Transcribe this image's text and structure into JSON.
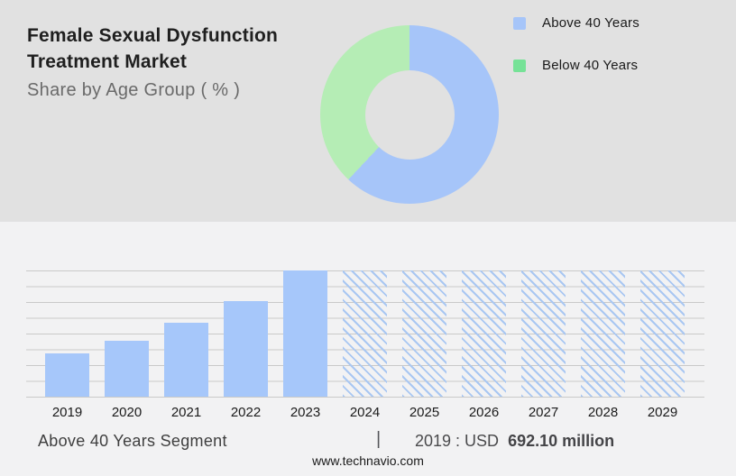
{
  "colors": {
    "top_background": "#e1e1e1",
    "bottom_background": "#f2f2f3",
    "donut_blue": "#a6c5f9",
    "donut_green": "#b5edb5",
    "legend_blue": "#a6c5f9",
    "legend_green": "#76e297",
    "bar_blue": "#a6c7fa",
    "hatch_blue": "#a9c7f2",
    "gridline": "#c9c9c9"
  },
  "header": {
    "title_line1": "Female Sexual Dysfunction",
    "title_line2": "Treatment Market",
    "subtitle": "Share by Age Group ( % )"
  },
  "legend": {
    "items": [
      {
        "label": "Above 40 Years",
        "color": "#a6c5f9"
      },
      {
        "label": "Below 40 Years",
        "color": "#76e297"
      }
    ]
  },
  "chart_data": [
    {
      "type": "pie",
      "subtype": "donut",
      "title": "Female Sexual Dysfunction Treatment Market — Share by Age Group ( % )",
      "labels": [
        "Above 40 Years",
        "Below 40 Years"
      ],
      "values_percent": [
        62,
        38
      ],
      "colors": [
        "#a6c5f9",
        "#b5edb5"
      ],
      "start_angle_deg": 0,
      "direction": "clockwise",
      "legend_position": "top-right",
      "hole_ratio": 0.5
    },
    {
      "type": "bar",
      "categories": [
        "2019",
        "2020",
        "2021",
        "2022",
        "2023",
        "2024",
        "2025",
        "2026",
        "2027",
        "2028",
        "2029"
      ],
      "values_percent_of_max": [
        34.3,
        44.3,
        58.6,
        75.7,
        100,
        100,
        100,
        100,
        100,
        100,
        100
      ],
      "forecast_hatched": [
        false,
        false,
        false,
        false,
        false,
        true,
        true,
        true,
        true,
        true,
        true
      ],
      "known_values": [
        {
          "category": "2019",
          "value": "USD 692.10 million"
        }
      ],
      "title": "Above 40 Years Segment",
      "xlabel": "",
      "ylabel": "",
      "grid": "horizontal",
      "gridline_count": 9,
      "bar_color": "#a6c7fa",
      "forecast_style": "diagonal-hatch"
    }
  ],
  "caption": {
    "segment_label": "Above 40 Years Segment",
    "separator": "|",
    "value_prefix": "2019 : USD",
    "value_bold": "692.10 million"
  },
  "footer": {
    "website": "www.technavio.com"
  }
}
